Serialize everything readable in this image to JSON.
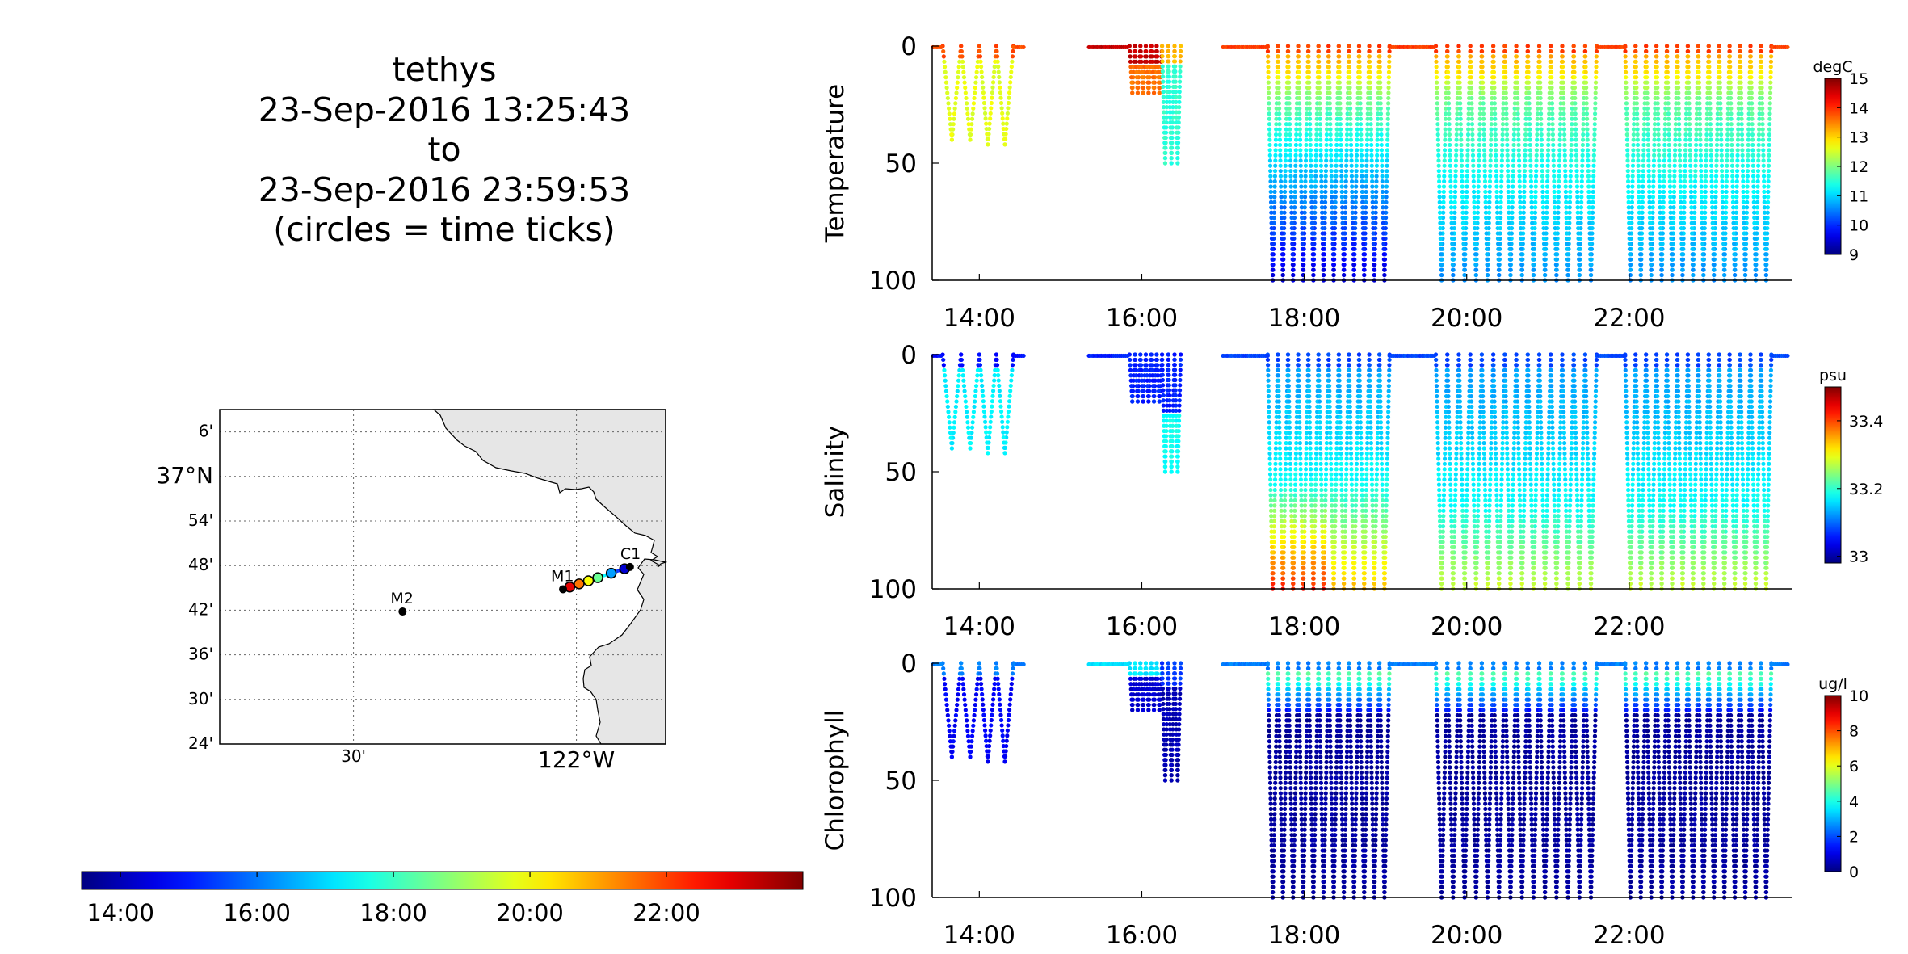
{
  "title_block": {
    "line1": "tethys",
    "line2": "23-Sep-2016 13:25:43",
    "line3": "to",
    "line4": "23-Sep-2016 23:59:53",
    "line5": "(circles = time ticks)"
  },
  "map": {
    "lat_labels": [
      "6'",
      "37°N",
      "54'",
      "48'",
      "42'",
      "36'",
      "30'",
      "24'"
    ],
    "lon_labels": [
      "30'",
      "122°W"
    ],
    "markers": [
      {
        "name": "M1",
        "lon": -122.03,
        "lat": 36.747
      },
      {
        "name": "M2",
        "lon": -122.39,
        "lat": 36.697
      },
      {
        "name": "C1",
        "lon": -121.88,
        "lat": 36.797
      }
    ],
    "land_color": "#e6e6e6",
    "grid": "dotted"
  },
  "time_colorbar": {
    "ticks": [
      "14:00",
      "16:00",
      "18:00",
      "20:00",
      "22:00"
    ],
    "start_hour": 13.43,
    "end_hour": 24.0,
    "colormap": "jet"
  },
  "chart_data": [
    {
      "type": "scatter",
      "title": "",
      "ylabel": "Temperature",
      "units": "degC",
      "ylim": [
        0,
        100
      ],
      "y_ticks": [
        "0",
        "50",
        "100"
      ],
      "x_ticks": [
        "14:00",
        "16:00",
        "18:00",
        "20:00",
        "22:00"
      ],
      "xlim": [
        "13:25",
        "24:00"
      ],
      "colorbar": {
        "min": 9,
        "max": 15,
        "ticks": [
          "15",
          "14",
          "13",
          "12",
          "11",
          "10",
          "9"
        ]
      },
      "depth_profile": "temperature",
      "colormap": "jet"
    },
    {
      "type": "scatter",
      "title": "",
      "ylabel": "Salinity",
      "units": "psu",
      "ylim": [
        0,
        100
      ],
      "y_ticks": [
        "0",
        "50",
        "100"
      ],
      "x_ticks": [
        "14:00",
        "16:00",
        "18:00",
        "20:00",
        "22:00"
      ],
      "xlim": [
        "13:25",
        "24:00"
      ],
      "colorbar": {
        "min": 32.98,
        "max": 33.5,
        "ticks": [
          "33.4",
          "33.2",
          "33"
        ]
      },
      "depth_profile": "salinity",
      "colormap": "jet"
    },
    {
      "type": "scatter",
      "title": "",
      "ylabel": "Chlorophyll",
      "units": "ug/l",
      "ylim": [
        0,
        100
      ],
      "y_ticks": [
        "0",
        "50",
        "100"
      ],
      "x_ticks": [
        "14:00",
        "16:00",
        "18:00",
        "20:00",
        "22:00"
      ],
      "xlim": [
        "13:25",
        "24:00"
      ],
      "colorbar": {
        "min": 0,
        "max": 10,
        "ticks": [
          "10",
          "8",
          "6",
          "4",
          "2",
          "0"
        ]
      },
      "depth_profile": "chlorophyll",
      "colormap": "jet"
    }
  ]
}
